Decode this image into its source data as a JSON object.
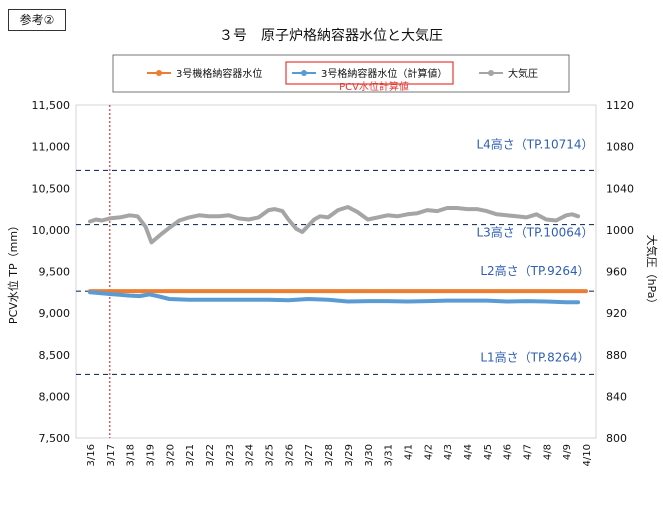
{
  "reference_tag": "参考②",
  "chart_data": {
    "type": "line",
    "title": "３号　原子炉格納容器水位と大気圧",
    "ylabel": "PCV水位 TP（mm）",
    "y2label": "大気圧（hPa）",
    "ylim": [
      7500,
      11500
    ],
    "y2lim": [
      800,
      1120
    ],
    "yticks": [
      "7,500",
      "8,000",
      "8,500",
      "9,000",
      "9,500",
      "10,000",
      "10,500",
      "11,000",
      "11,500"
    ],
    "y2ticks": [
      "800",
      "840",
      "880",
      "920",
      "960",
      "1000",
      "1040",
      "1080",
      "1120"
    ],
    "categories": [
      "3/16",
      "3/17",
      "3/18",
      "3/19",
      "3/20",
      "3/21",
      "3/22",
      "3/23",
      "3/24",
      "3/25",
      "3/26",
      "3/27",
      "3/28",
      "3/29",
      "3/30",
      "3/31",
      "4/1",
      "4/2",
      "4/3",
      "4/4",
      "4/5",
      "4/6",
      "4/7",
      "4/8",
      "4/9",
      "4/10"
    ],
    "legend": {
      "position": "top",
      "items": [
        {
          "name": "3号機格納容器水位",
          "color": "#ED7D31"
        },
        {
          "name": "3号格納容器水位（計算値）",
          "color": "#5B9BD5",
          "highlight": "PCV水位計算値"
        },
        {
          "name": "大気圧",
          "color": "#A5A5A5"
        }
      ]
    },
    "reference_lines": [
      {
        "label": "L4高さ（TP.10714）",
        "value": 10714
      },
      {
        "label": "L3高さ（TP.10064）",
        "value": 10064
      },
      {
        "label": "L2高さ（TP.9264）",
        "value": 9264
      },
      {
        "label": "L1高さ（TP.8264）",
        "value": 8264
      }
    ],
    "marker_line_date": "3/17",
    "series": [
      {
        "name": "3号機格納容器水位",
        "axis": "left",
        "color": "#ED7D31",
        "x": [
          0,
          25
        ],
        "values": [
          9264,
          9264
        ]
      },
      {
        "name": "3号格納容器水位（計算値）",
        "axis": "left",
        "color": "#5B9BD5",
        "x": [
          0,
          0.5,
          1,
          1.5,
          2,
          2.5,
          3,
          3.5,
          4,
          5,
          6,
          7,
          8,
          9,
          10,
          11,
          12,
          13,
          14,
          15,
          16,
          17,
          18,
          19,
          20,
          21,
          22,
          23,
          24,
          24.6
        ],
        "values": [
          9250,
          9240,
          9230,
          9220,
          9210,
          9205,
          9225,
          9200,
          9170,
          9160,
          9160,
          9160,
          9160,
          9160,
          9155,
          9170,
          9160,
          9140,
          9145,
          9145,
          9140,
          9145,
          9150,
          9150,
          9150,
          9140,
          9145,
          9140,
          9130,
          9130
        ]
      },
      {
        "name": "大気圧",
        "axis": "right",
        "color": "#A5A5A5",
        "x": [
          0,
          0.3,
          0.6,
          1,
          1.5,
          2,
          2.4,
          2.8,
          3.1,
          3.6,
          4,
          4.5,
          5,
          5.5,
          6,
          6.5,
          7,
          7.5,
          8,
          8.5,
          9,
          9.3,
          9.7,
          10,
          10.4,
          10.7,
          11,
          11.3,
          11.6,
          12,
          12.5,
          13,
          13.5,
          14,
          14.5,
          15,
          15.5,
          16,
          16.5,
          17,
          17.5,
          18,
          18.5,
          19,
          19.5,
          20,
          20.5,
          21,
          21.5,
          22,
          22.5,
          23,
          23.5,
          24,
          24.3,
          24.6
        ],
        "values": [
          1008,
          1010,
          1009,
          1011,
          1012,
          1014,
          1013,
          1003,
          988,
          996,
          1002,
          1009,
          1012,
          1014,
          1013,
          1013,
          1014,
          1011,
          1010,
          1012,
          1019,
          1020,
          1018,
          1010,
          1001,
          998,
          1004,
          1010,
          1013,
          1012,
          1019,
          1022,
          1017,
          1010,
          1012,
          1014,
          1013,
          1015,
          1016,
          1019,
          1018,
          1021,
          1021,
          1020,
          1020,
          1018,
          1015,
          1014,
          1013,
          1012,
          1015,
          1010,
          1009,
          1014,
          1015,
          1013
        ]
      }
    ],
    "grid": false
  }
}
